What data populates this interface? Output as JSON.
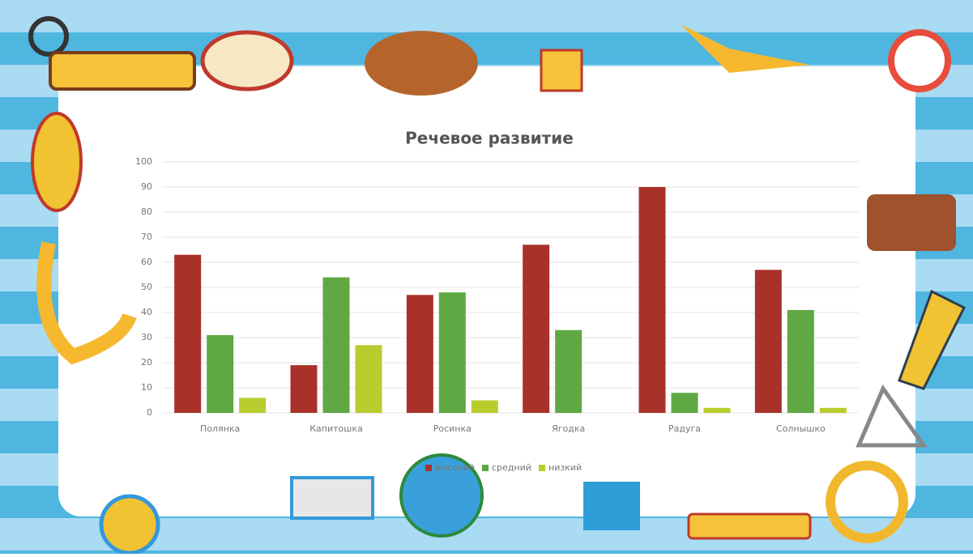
{
  "chart_data": {
    "type": "bar",
    "title": "Речевое развитие",
    "categories": [
      "Полянка",
      "Капитошка",
      "Росинка",
      "Ягодка",
      "Радуга",
      "Солнышко"
    ],
    "series": [
      {
        "name": "высокий",
        "color": "#a8322a",
        "values": [
          63,
          19,
          47,
          67,
          90,
          57
        ]
      },
      {
        "name": "средний",
        "color": "#5fa843",
        "values": [
          31,
          54,
          48,
          33,
          8,
          41
        ]
      },
      {
        "name": "низкий",
        "color": "#b9cc2e",
        "values": [
          6,
          27,
          5,
          0,
          2,
          2
        ]
      }
    ],
    "ylim": [
      0,
      100
    ],
    "yticks": [
      0,
      10,
      20,
      30,
      40,
      50,
      60,
      70,
      80,
      90,
      100
    ],
    "grid": true,
    "legend": "bottom"
  }
}
